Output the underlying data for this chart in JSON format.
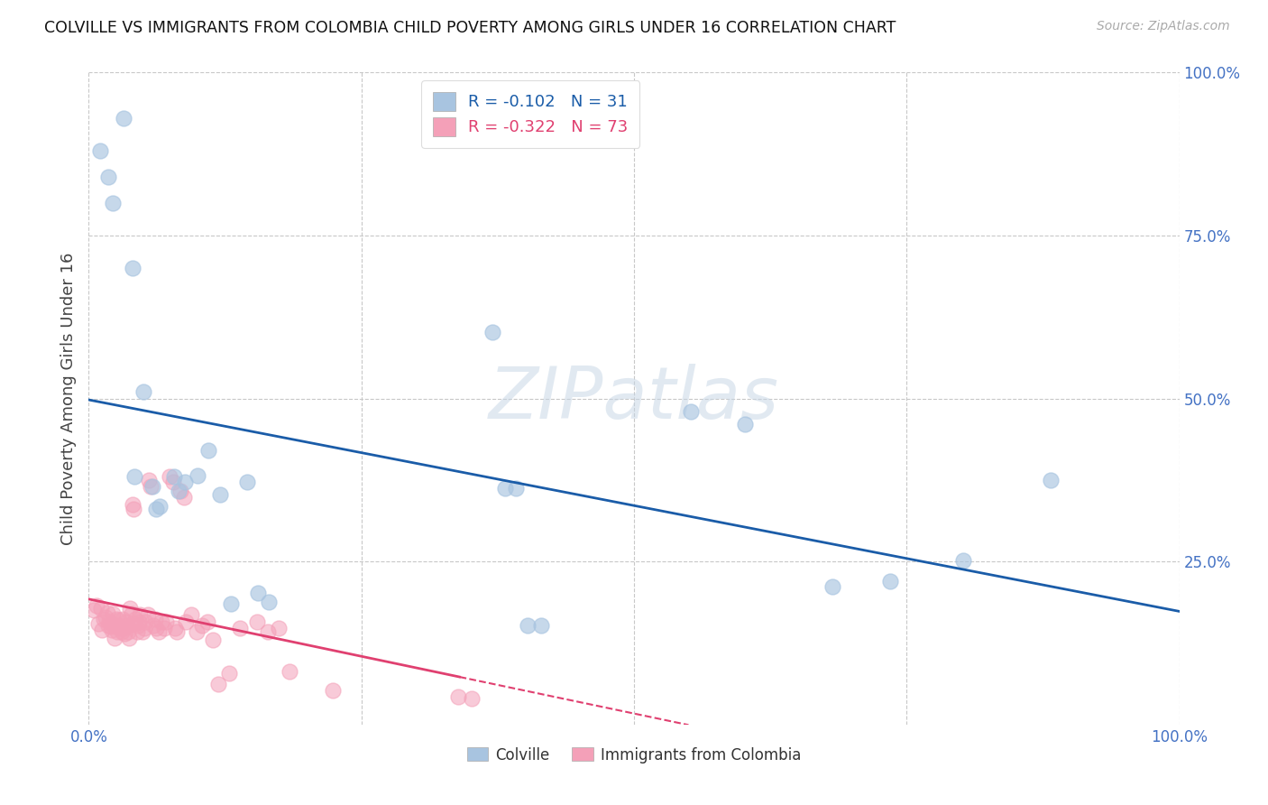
{
  "title": "COLVILLE VS IMMIGRANTS FROM COLOMBIA CHILD POVERTY AMONG GIRLS UNDER 16 CORRELATION CHART",
  "source": "Source: ZipAtlas.com",
  "ylabel": "Child Poverty Among Girls Under 16",
  "colville_R": -0.102,
  "colville_N": 31,
  "colombia_R": -0.322,
  "colombia_N": 73,
  "colville_color": "#a8c4e0",
  "colombia_color": "#f4a0b8",
  "trendline_colville_color": "#1a5ca8",
  "trendline_colombia_color": "#e04070",
  "background_color": "#ffffff",
  "grid_color": "#c8c8c8",
  "watermark": "ZIPatlas",
  "colville_points": [
    [
      0.01,
      0.88
    ],
    [
      0.018,
      0.84
    ],
    [
      0.022,
      0.8
    ],
    [
      0.032,
      0.93
    ],
    [
      0.04,
      0.7
    ],
    [
      0.042,
      0.38
    ],
    [
      0.05,
      0.51
    ],
    [
      0.058,
      0.365
    ],
    [
      0.062,
      0.33
    ],
    [
      0.065,
      0.335
    ],
    [
      0.078,
      0.38
    ],
    [
      0.082,
      0.358
    ],
    [
      0.088,
      0.372
    ],
    [
      0.1,
      0.382
    ],
    [
      0.11,
      0.42
    ],
    [
      0.12,
      0.352
    ],
    [
      0.13,
      0.185
    ],
    [
      0.145,
      0.372
    ],
    [
      0.155,
      0.202
    ],
    [
      0.165,
      0.188
    ],
    [
      0.37,
      0.602
    ],
    [
      0.382,
      0.362
    ],
    [
      0.392,
      0.362
    ],
    [
      0.402,
      0.152
    ],
    [
      0.415,
      0.152
    ],
    [
      0.552,
      0.48
    ],
    [
      0.602,
      0.46
    ],
    [
      0.682,
      0.212
    ],
    [
      0.735,
      0.22
    ],
    [
      0.802,
      0.252
    ],
    [
      0.882,
      0.375
    ]
  ],
  "colombia_points": [
    [
      0.005,
      0.175
    ],
    [
      0.007,
      0.182
    ],
    [
      0.009,
      0.155
    ],
    [
      0.011,
      0.178
    ],
    [
      0.012,
      0.145
    ],
    [
      0.014,
      0.162
    ],
    [
      0.015,
      0.165
    ],
    [
      0.017,
      0.172
    ],
    [
      0.018,
      0.152
    ],
    [
      0.019,
      0.158
    ],
    [
      0.02,
      0.15
    ],
    [
      0.021,
      0.145
    ],
    [
      0.022,
      0.17
    ],
    [
      0.023,
      0.152
    ],
    [
      0.024,
      0.132
    ],
    [
      0.025,
      0.162
    ],
    [
      0.026,
      0.142
    ],
    [
      0.027,
      0.152
    ],
    [
      0.028,
      0.16
    ],
    [
      0.029,
      0.148
    ],
    [
      0.03,
      0.142
    ],
    [
      0.031,
      0.162
    ],
    [
      0.032,
      0.148
    ],
    [
      0.033,
      0.14
    ],
    [
      0.034,
      0.158
    ],
    [
      0.035,
      0.152
    ],
    [
      0.036,
      0.142
    ],
    [
      0.037,
      0.132
    ],
    [
      0.038,
      0.178
    ],
    [
      0.039,
      0.17
    ],
    [
      0.04,
      0.338
    ],
    [
      0.041,
      0.33
    ],
    [
      0.042,
      0.155
    ],
    [
      0.043,
      0.162
    ],
    [
      0.044,
      0.142
    ],
    [
      0.045,
      0.152
    ],
    [
      0.046,
      0.158
    ],
    [
      0.047,
      0.168
    ],
    [
      0.049,
      0.142
    ],
    [
      0.051,
      0.148
    ],
    [
      0.052,
      0.158
    ],
    [
      0.054,
      0.168
    ],
    [
      0.055,
      0.375
    ],
    [
      0.057,
      0.365
    ],
    [
      0.059,
      0.152
    ],
    [
      0.061,
      0.162
    ],
    [
      0.062,
      0.148
    ],
    [
      0.064,
      0.142
    ],
    [
      0.067,
      0.158
    ],
    [
      0.069,
      0.148
    ],
    [
      0.071,
      0.158
    ],
    [
      0.074,
      0.38
    ],
    [
      0.077,
      0.372
    ],
    [
      0.079,
      0.148
    ],
    [
      0.081,
      0.142
    ],
    [
      0.084,
      0.358
    ],
    [
      0.087,
      0.348
    ],
    [
      0.089,
      0.158
    ],
    [
      0.094,
      0.168
    ],
    [
      0.099,
      0.142
    ],
    [
      0.104,
      0.152
    ],
    [
      0.109,
      0.158
    ],
    [
      0.114,
      0.13
    ],
    [
      0.119,
      0.062
    ],
    [
      0.129,
      0.078
    ],
    [
      0.139,
      0.148
    ],
    [
      0.154,
      0.158
    ],
    [
      0.164,
      0.142
    ],
    [
      0.174,
      0.148
    ],
    [
      0.184,
      0.082
    ],
    [
      0.224,
      0.052
    ],
    [
      0.339,
      0.042
    ],
    [
      0.351,
      0.04
    ]
  ]
}
